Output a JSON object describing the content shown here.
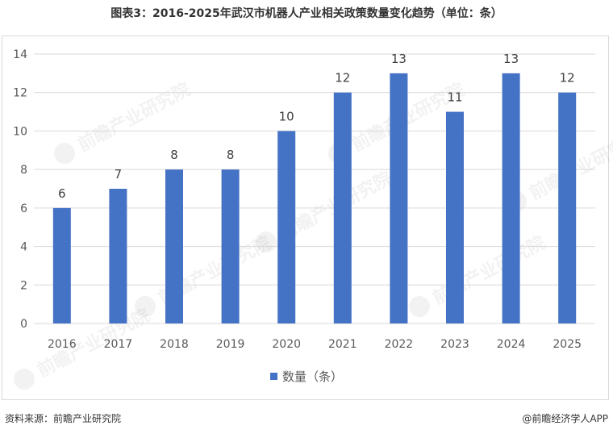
{
  "title": "图表3：2016-2025年武汉市机器人产业相关政策数量变化趋势（单位：条）",
  "source": "资料来源：前瞻产业研究院",
  "brand": "@前瞻经济学人APP",
  "watermark_text": "前瞻产业研究院",
  "colors": {
    "bar": "#4472c4",
    "grid": "#d9d9d9",
    "text": "#595959"
  },
  "chart_data": {
    "type": "bar",
    "categories": [
      "2016",
      "2017",
      "2018",
      "2019",
      "2020",
      "2021",
      "2022",
      "2023",
      "2024",
      "2025"
    ],
    "series": [
      {
        "name": "数量（条）",
        "values": [
          6,
          7,
          8,
          8,
          10,
          12,
          13,
          11,
          13,
          12
        ]
      }
    ],
    "ylim": [
      0,
      14
    ],
    "yticks": [
      0,
      2,
      4,
      6,
      8,
      10,
      12,
      14
    ],
    "grid": true,
    "data_labels": true,
    "legend_position": "bottom"
  }
}
